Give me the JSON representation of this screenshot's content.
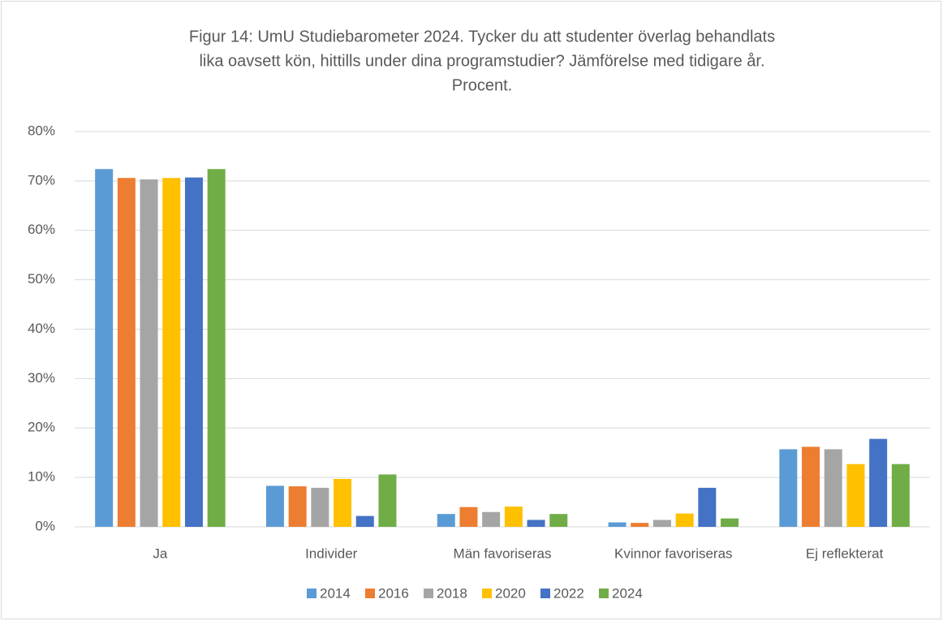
{
  "chart_data": {
    "type": "bar",
    "title_lines": [
      "Figur 14: UmU Studiebarometer 2024. Tycker du att studenter överlag behandlats",
      "lika oavsett kön, hittills under dina programstudier? Jämförelse med tidigare år.",
      "Procent."
    ],
    "categories": [
      "Ja",
      "Individer",
      "Män favoriseras",
      "Kvinnor favoriseras",
      "Ej reflekterat"
    ],
    "series": [
      {
        "name": "2014",
        "color": "#5b9bd5",
        "values": [
          72.4,
          8.3,
          2.6,
          0.9,
          15.7
        ]
      },
      {
        "name": "2016",
        "color": "#ed7d31",
        "values": [
          70.6,
          8.2,
          4.0,
          0.8,
          16.2
        ]
      },
      {
        "name": "2018",
        "color": "#a5a5a5",
        "values": [
          70.3,
          7.9,
          3.0,
          1.4,
          15.7
        ]
      },
      {
        "name": "2020",
        "color": "#ffc000",
        "values": [
          70.6,
          9.7,
          4.1,
          2.7,
          12.7
        ]
      },
      {
        "name": "2022",
        "color": "#4472c4",
        "values": [
          70.7,
          2.2,
          1.4,
          7.9,
          17.8
        ]
      },
      {
        "name": "2024",
        "color": "#70ad47",
        "values": [
          72.4,
          10.6,
          2.6,
          1.7,
          12.7
        ]
      }
    ],
    "ylim": [
      0,
      80
    ],
    "yticks": [
      {
        "value": 0,
        "label": "0%"
      },
      {
        "value": 10,
        "label": "10%"
      },
      {
        "value": 20,
        "label": "20%"
      },
      {
        "value": 30,
        "label": "30%"
      },
      {
        "value": 40,
        "label": "40%"
      },
      {
        "value": 50,
        "label": "50%"
      },
      {
        "value": 60,
        "label": "60%"
      },
      {
        "value": 70,
        "label": "70%"
      },
      {
        "value": 80,
        "label": "80%"
      }
    ],
    "grid": true,
    "legend": "bottom"
  }
}
